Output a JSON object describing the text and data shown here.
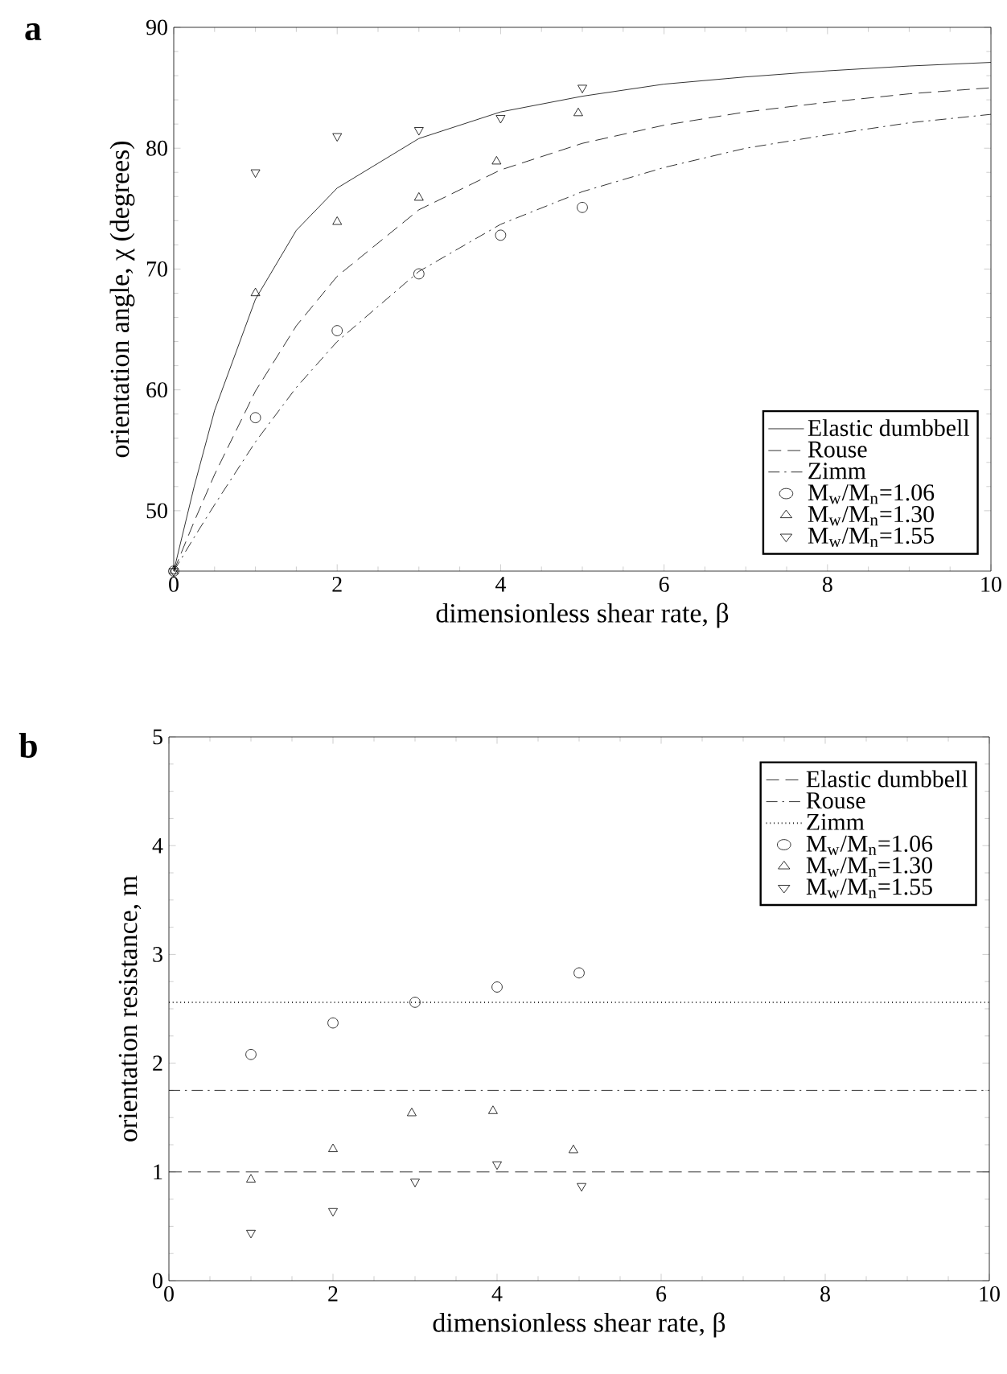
{
  "chart_data": [
    {
      "type": "scatter",
      "title": "a",
      "xlabel": "dimensionless shear rate, β",
      "ylabel": "orientation angle, χ (degrees)",
      "xlim": [
        0,
        10
      ],
      "ylim": [
        45,
        90
      ],
      "xticks": [
        0,
        2,
        4,
        6,
        8,
        10
      ],
      "yticks": [
        50,
        60,
        70,
        80,
        90
      ],
      "legend": "bottom right",
      "series": [
        {
          "name": "Elastic dumbbell",
          "type": "line",
          "line_style": "solid",
          "color": "#000000",
          "x": [
            0,
            0.25,
            0.5,
            1,
            1.5,
            2,
            3,
            4,
            5,
            6,
            7,
            8,
            9,
            10
          ],
          "values": [
            45,
            52.0,
            58.3,
            67.5,
            73.2,
            76.7,
            80.8,
            83.0,
            84.3,
            85.3,
            85.9,
            86.4,
            86.8,
            87.1
          ]
        },
        {
          "name": "Rouse",
          "type": "line",
          "line_style": "dashed",
          "color": "#000000",
          "x": [
            0,
            0.25,
            0.5,
            1,
            1.5,
            2,
            3,
            4,
            5,
            6,
            7,
            8,
            9,
            10
          ],
          "values": [
            45,
            49.1,
            53.0,
            59.9,
            65.3,
            69.4,
            74.9,
            78.2,
            80.4,
            81.9,
            83.0,
            83.8,
            84.5,
            85.0
          ]
        },
        {
          "name": "Zimm",
          "type": "line",
          "line_style": "dashdot",
          "color": "#000000",
          "x": [
            0,
            0.25,
            0.5,
            1,
            1.5,
            2,
            3,
            4,
            5,
            6,
            7,
            8,
            9,
            10
          ],
          "values": [
            45,
            47.8,
            50.5,
            55.7,
            60.2,
            64.0,
            69.8,
            73.7,
            76.4,
            78.4,
            80.0,
            81.1,
            82.1,
            82.8
          ]
        },
        {
          "name": "M$_{w}$/M$_{n}$=1.06",
          "marker": "circle",
          "color": "#000000",
          "x": [
            0,
            1,
            2,
            3,
            4,
            5
          ],
          "values": [
            45,
            57.7,
            64.9,
            69.6,
            72.8,
            75.1
          ]
        },
        {
          "name": "M$_{w}$/M$_{n}$=1.30",
          "marker": "triangle",
          "color": "#000000",
          "x": [
            0,
            1,
            2,
            3,
            3.95,
            4.95
          ],
          "values": [
            45,
            68.0,
            73.9,
            75.9,
            78.9,
            82.9
          ]
        },
        {
          "name": "M$_{w}$/M$_{n}$=1.55",
          "marker": "triangle-down",
          "color": "#000000",
          "x": [
            0,
            1,
            2,
            3,
            4,
            5
          ],
          "values": [
            45,
            78.0,
            81.0,
            81.5,
            82.5,
            85.0
          ]
        }
      ]
    },
    {
      "type": "scatter",
      "title": "b",
      "xlabel": "dimensionless shear rate, β",
      "ylabel": "orientation resistance, m",
      "xlim": [
        0,
        10
      ],
      "ylim": [
        0,
        5
      ],
      "xticks": [
        0,
        2,
        4,
        6,
        8,
        10
      ],
      "yticks": [
        0,
        1,
        2,
        3,
        4,
        5
      ],
      "legend": "top right",
      "series": [
        {
          "name": "Elastic dumbbell",
          "type": "line",
          "line_style": "dashed",
          "color": "#000000",
          "x": [
            0,
            10
          ],
          "values": [
            1.0,
            1.0
          ]
        },
        {
          "name": "Rouse",
          "type": "line",
          "line_style": "dashdot",
          "color": "#000000",
          "x": [
            0,
            10
          ],
          "values": [
            1.75,
            1.75
          ]
        },
        {
          "name": "Zimm",
          "type": "line",
          "line_style": "dotted",
          "color": "#000000",
          "x": [
            0,
            10
          ],
          "values": [
            2.56,
            2.56
          ]
        },
        {
          "name": "M$_{w}$/M$_{n}$=1.06",
          "marker": "circle",
          "color": "#000000",
          "x": [
            1,
            2,
            3,
            4,
            5
          ],
          "values": [
            2.08,
            2.37,
            2.56,
            2.7,
            2.83
          ]
        },
        {
          "name": "M$_{w}$/M$_{n}$=1.30",
          "marker": "triangle",
          "color": "#000000",
          "x": [
            1,
            2,
            2.96,
            3.95,
            4.93
          ],
          "values": [
            0.93,
            1.21,
            1.54,
            1.56,
            1.2
          ]
        },
        {
          "name": "M$_{w}$/M$_{n}$=1.55",
          "marker": "triangle-down",
          "color": "#000000",
          "x": [
            1,
            2,
            3,
            4,
            5.03
          ],
          "values": [
            0.44,
            0.64,
            0.91,
            1.07,
            0.87
          ]
        }
      ]
    }
  ]
}
